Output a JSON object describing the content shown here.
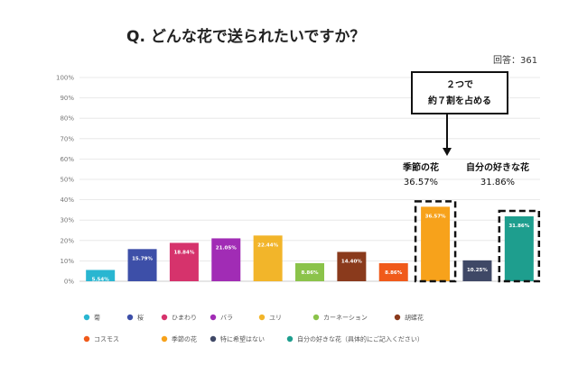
{
  "title": "Q. どんな花で送られたいですか？",
  "respondents": "回答：361",
  "callout": {
    "line1": "２つで",
    "line2": "約７割を占める"
  },
  "highlights": [
    {
      "name": "季節の花",
      "value": "36.57%"
    },
    {
      "name": "自分の好きな花",
      "value": "31.86%"
    }
  ],
  "colors": {
    "grid": "#e3e3e3",
    "axis": "#bbbbbb",
    "callout_border": "#111111",
    "dash": "#111111"
  },
  "chart_data": {
    "type": "bar",
    "title": "Q. どんな花で送られたいですか？",
    "ylim": [
      0,
      100
    ],
    "ytick_labels": [
      "0%",
      "10%",
      "20%",
      "30%",
      "40%",
      "50%",
      "60%",
      "70%",
      "80%",
      "90%",
      "100%"
    ],
    "grid": true,
    "legend_position": "bottom",
    "categories": [
      "菊",
      "桜",
      "ひまわり",
      "バラ",
      "ユリ",
      "カーネーション",
      "胡蝶花",
      "コスモス",
      "季節の花",
      "特に希望はない",
      "自分の好きな花（具体的にご記入ください）"
    ],
    "values": [
      5.54,
      15.79,
      18.84,
      21.05,
      22.44,
      8.86,
      14.4,
      8.86,
      36.57,
      10.25,
      31.86
    ],
    "value_labels": [
      "5.54%",
      "15.79%",
      "18.84%",
      "21.05%",
      "22.44%",
      "8.86%",
      "14.40%",
      "8.86%",
      "36.57%",
      "10.25%",
      "31.86%"
    ],
    "colors": [
      "#29b6d1",
      "#3d4fa8",
      "#d6336c",
      "#a12cb5",
      "#f2b52a",
      "#8bc34a",
      "#8a3a1c",
      "#f05a1a",
      "#f7a21b",
      "#3f4866",
      "#1e9e8e"
    ]
  }
}
